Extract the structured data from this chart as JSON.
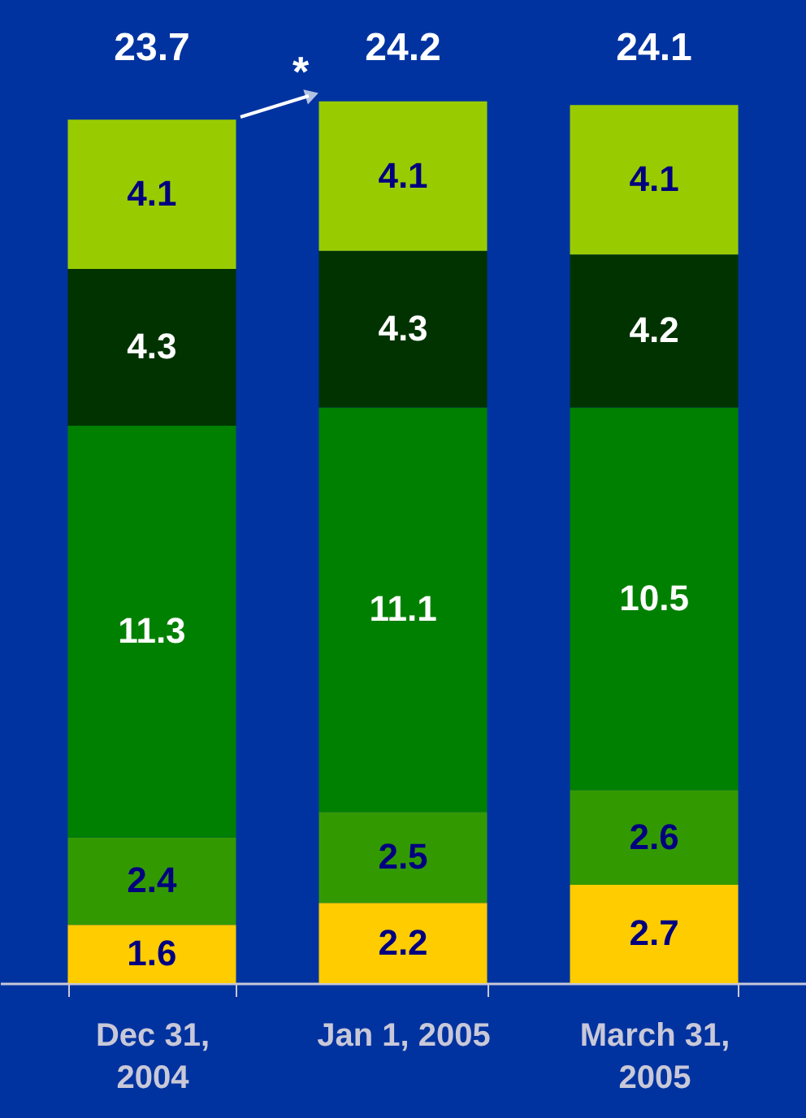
{
  "chart_data": {
    "type": "bar",
    "stacked": true,
    "categories": [
      "Dec 31, 2004",
      "Jan 1, 2005",
      "March 31, 2005"
    ],
    "series": [
      {
        "color": "#ffcc00",
        "values": [
          1.6,
          2.2,
          2.7
        ]
      },
      {
        "color": "#339900",
        "values": [
          2.4,
          2.5,
          2.6
        ]
      },
      {
        "color": "#008000",
        "values": [
          11.3,
          11.1,
          10.5
        ]
      },
      {
        "color": "#003300",
        "values": [
          4.3,
          4.3,
          4.2
        ]
      },
      {
        "color": "#99cc00",
        "values": [
          4.1,
          4.1,
          4.1
        ]
      }
    ],
    "tick_labels": "x",
    "data_labels": true,
    "totals": [
      "23.7",
      "24.2",
      "24.1"
    ],
    "annotations": [
      "*"
    ]
  }
}
